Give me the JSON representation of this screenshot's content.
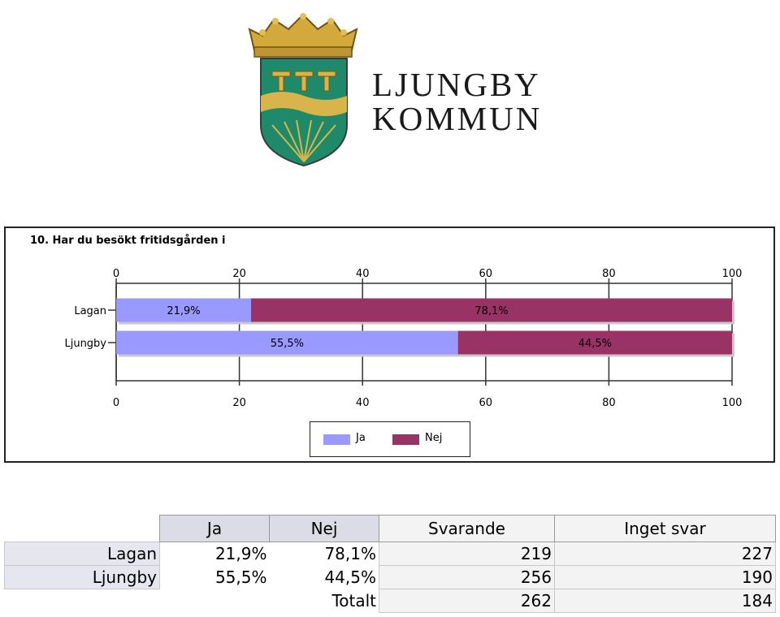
{
  "logo": {
    "line1": "LJUNGBY",
    "line2": "KOMMUN"
  },
  "colors": {
    "ja": "#9999ff",
    "nej": "#993366",
    "shield_green": "#1f8a6a",
    "shield_gold": "#d9b44a"
  },
  "chart_data": {
    "type": "bar",
    "orientation": "horizontal",
    "stacked": true,
    "title": "10. Har du besökt fritidsgården i",
    "categories": [
      "Lagan",
      "Ljungby"
    ],
    "series": [
      {
        "name": "Ja",
        "values": [
          21.9,
          55.5
        ],
        "labels": [
          "21,9%",
          "55,5%"
        ]
      },
      {
        "name": "Nej",
        "values": [
          78.1,
          44.5
        ],
        "labels": [
          "78,1%",
          "44,5%"
        ]
      }
    ],
    "xlim": [
      0,
      100
    ],
    "xticks": [
      0,
      20,
      40,
      60,
      80,
      100
    ],
    "grid": true,
    "legend": "bottom-center"
  },
  "table": {
    "headers": [
      "Ja",
      "Nej",
      "Svarande",
      "Inget svar"
    ],
    "rows": [
      {
        "label": "Lagan",
        "ja": "21,9%",
        "nej": "78,1%",
        "svarande": "219",
        "inget": "227"
      },
      {
        "label": "Ljungby",
        "ja": "55,5%",
        "nej": "44,5%",
        "svarande": "256",
        "inget": "190"
      }
    ],
    "total": {
      "label": "Totalt",
      "svarande": "262",
      "inget": "184"
    }
  }
}
